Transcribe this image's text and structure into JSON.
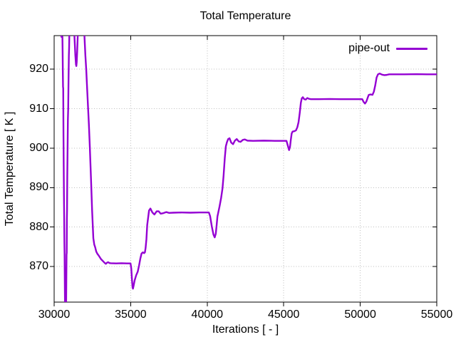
{
  "title": "Total Temperature",
  "legend": {
    "label": "pipe-out"
  },
  "colors": {
    "line": "#9400d3",
    "grid": "#bdbdbd",
    "axis": "#000000",
    "background": "#ffffff",
    "text": "#000000"
  },
  "chart_data": {
    "type": "line",
    "title": "Total Temperature",
    "xlabel": "Iterations [ - ]",
    "ylabel": "Total Temperature [ K ]",
    "xlim": [
      30000,
      55000
    ],
    "ylim": [
      861.0,
      928.5
    ],
    "xticks": [
      30000,
      35000,
      40000,
      45000,
      50000,
      55000
    ],
    "yticks": [
      870,
      880,
      890,
      900,
      910,
      920
    ],
    "grid": true,
    "grid_style": "dotted",
    "legend_position": "top-right-inside",
    "series": [
      {
        "name": "pipe-out",
        "color": "#9400d3",
        "points": [
          [
            30270,
            936
          ],
          [
            30450,
            929.5
          ],
          [
            30470,
            928.2
          ],
          [
            30540,
            928.2
          ],
          [
            30555,
            924
          ],
          [
            30565,
            920
          ],
          [
            30580,
            915.5
          ],
          [
            30592,
            915.2
          ],
          [
            30610,
            903
          ],
          [
            30640,
            888
          ],
          [
            30650,
            884.3
          ],
          [
            30670,
            876
          ],
          [
            30682,
            873
          ],
          [
            30700,
            864
          ],
          [
            30725,
            854
          ],
          [
            30770,
            854
          ],
          [
            30795,
            866
          ],
          [
            30810,
            873
          ],
          [
            30822,
            873.5
          ],
          [
            30832,
            882
          ],
          [
            30842,
            884.3
          ],
          [
            30858,
            893
          ],
          [
            30878,
            900
          ],
          [
            30898,
            907.3
          ],
          [
            30918,
            910
          ],
          [
            30942,
            918
          ],
          [
            30962,
            923.5
          ],
          [
            30978,
            925.5
          ],
          [
            30998,
            930
          ],
          [
            31015,
            936
          ],
          [
            31240,
            936
          ],
          [
            31330,
            928
          ],
          [
            31385,
            923.5
          ],
          [
            31425,
            921.2
          ],
          [
            31450,
            920.8
          ],
          [
            31475,
            921.8
          ],
          [
            31505,
            924.5
          ],
          [
            31545,
            929
          ],
          [
            31585,
            936
          ],
          [
            31840,
            936
          ],
          [
            31960,
            930
          ],
          [
            32040,
            923.5
          ],
          [
            32095,
            920
          ],
          [
            32150,
            915.5
          ],
          [
            32210,
            910.7
          ],
          [
            32270,
            906
          ],
          [
            32330,
            900.4
          ],
          [
            32410,
            892
          ],
          [
            32480,
            884.2
          ],
          [
            32560,
            877.2
          ],
          [
            32620,
            875.6
          ],
          [
            32680,
            874.9
          ],
          [
            32750,
            873.8
          ],
          [
            32830,
            873.2
          ],
          [
            32910,
            872.8
          ],
          [
            33060,
            871.9
          ],
          [
            33210,
            871.3
          ],
          [
            33310,
            870.9
          ],
          [
            33380,
            870.7
          ],
          [
            33460,
            871.0
          ],
          [
            33530,
            871.1
          ],
          [
            33610,
            870.9
          ],
          [
            33700,
            870.85
          ],
          [
            34050,
            870.8
          ],
          [
            34400,
            870.85
          ],
          [
            34750,
            870.8
          ],
          [
            34990,
            870.8
          ],
          [
            35040,
            869.5
          ],
          [
            35080,
            867
          ],
          [
            35120,
            864.8
          ],
          [
            35150,
            864.4
          ],
          [
            35190,
            865.1
          ],
          [
            35260,
            866.5
          ],
          [
            35360,
            867.8
          ],
          [
            35460,
            868.7
          ],
          [
            35550,
            870.3
          ],
          [
            35630,
            872
          ],
          [
            35710,
            873.3
          ],
          [
            35790,
            873.6
          ],
          [
            35870,
            873.4
          ],
          [
            35930,
            873.6
          ],
          [
            35975,
            874.7
          ],
          [
            36030,
            877
          ],
          [
            36080,
            880.5
          ],
          [
            36200,
            884.2
          ],
          [
            36290,
            884.7
          ],
          [
            36420,
            883.7
          ],
          [
            36550,
            883.2
          ],
          [
            36700,
            884.0
          ],
          [
            36830,
            884.0
          ],
          [
            36960,
            883.4
          ],
          [
            37100,
            883.5
          ],
          [
            37330,
            883.8
          ],
          [
            37500,
            883.6
          ],
          [
            37800,
            883.65
          ],
          [
            38300,
            883.7
          ],
          [
            38900,
            883.65
          ],
          [
            39500,
            883.7
          ],
          [
            40110,
            883.7
          ],
          [
            40190,
            882.8
          ],
          [
            40300,
            880.2
          ],
          [
            40410,
            878.1
          ],
          [
            40490,
            877.4
          ],
          [
            40560,
            878.3
          ],
          [
            40620,
            880.6
          ],
          [
            40670,
            882.7
          ],
          [
            40730,
            883.8
          ],
          [
            40810,
            885.3
          ],
          [
            40910,
            887.4
          ],
          [
            41000,
            889.8
          ],
          [
            41070,
            893
          ],
          [
            41150,
            897.5
          ],
          [
            41220,
            900.5
          ],
          [
            41290,
            901.5
          ],
          [
            41370,
            902.3
          ],
          [
            41460,
            902.5
          ],
          [
            41570,
            901.4
          ],
          [
            41690,
            901.0
          ],
          [
            41810,
            901.9
          ],
          [
            41930,
            902.3
          ],
          [
            42060,
            901.7
          ],
          [
            42180,
            901.6
          ],
          [
            42330,
            902.1
          ],
          [
            42460,
            902.2
          ],
          [
            42630,
            901.9
          ],
          [
            43000,
            901.85
          ],
          [
            43700,
            901.9
          ],
          [
            44400,
            901.85
          ],
          [
            45180,
            901.85
          ],
          [
            45270,
            900.6
          ],
          [
            45350,
            899.5
          ],
          [
            45410,
            900.3
          ],
          [
            45460,
            902
          ],
          [
            45520,
            903.7
          ],
          [
            45580,
            904.2
          ],
          [
            45700,
            904.3
          ],
          [
            45800,
            904.5
          ],
          [
            45890,
            905.3
          ],
          [
            45970,
            906.6
          ],
          [
            46050,
            909
          ],
          [
            46120,
            911.5
          ],
          [
            46180,
            912.6
          ],
          [
            46250,
            912.9
          ],
          [
            46340,
            912.4
          ],
          [
            46440,
            912.3
          ],
          [
            46540,
            912.7
          ],
          [
            46650,
            912.5
          ],
          [
            46780,
            912.4
          ],
          [
            47300,
            912.4
          ],
          [
            48000,
            912.45
          ],
          [
            48700,
            912.4
          ],
          [
            49400,
            912.4
          ],
          [
            50130,
            912.4
          ],
          [
            50220,
            911.7
          ],
          [
            50310,
            911.3
          ],
          [
            50400,
            911.8
          ],
          [
            50490,
            912.8
          ],
          [
            50560,
            913.5
          ],
          [
            50670,
            913.6
          ],
          [
            50800,
            913.5
          ],
          [
            50890,
            914.3
          ],
          [
            50980,
            915.9
          ],
          [
            51070,
            917.9
          ],
          [
            51160,
            918.7
          ],
          [
            51270,
            918.9
          ],
          [
            51430,
            918.6
          ],
          [
            51580,
            918.5
          ],
          [
            51730,
            918.55
          ],
          [
            51890,
            918.7
          ],
          [
            52150,
            918.7
          ],
          [
            52900,
            918.7
          ],
          [
            53700,
            918.75
          ],
          [
            54350,
            918.7
          ],
          [
            55000,
            918.7
          ]
        ]
      }
    ]
  }
}
